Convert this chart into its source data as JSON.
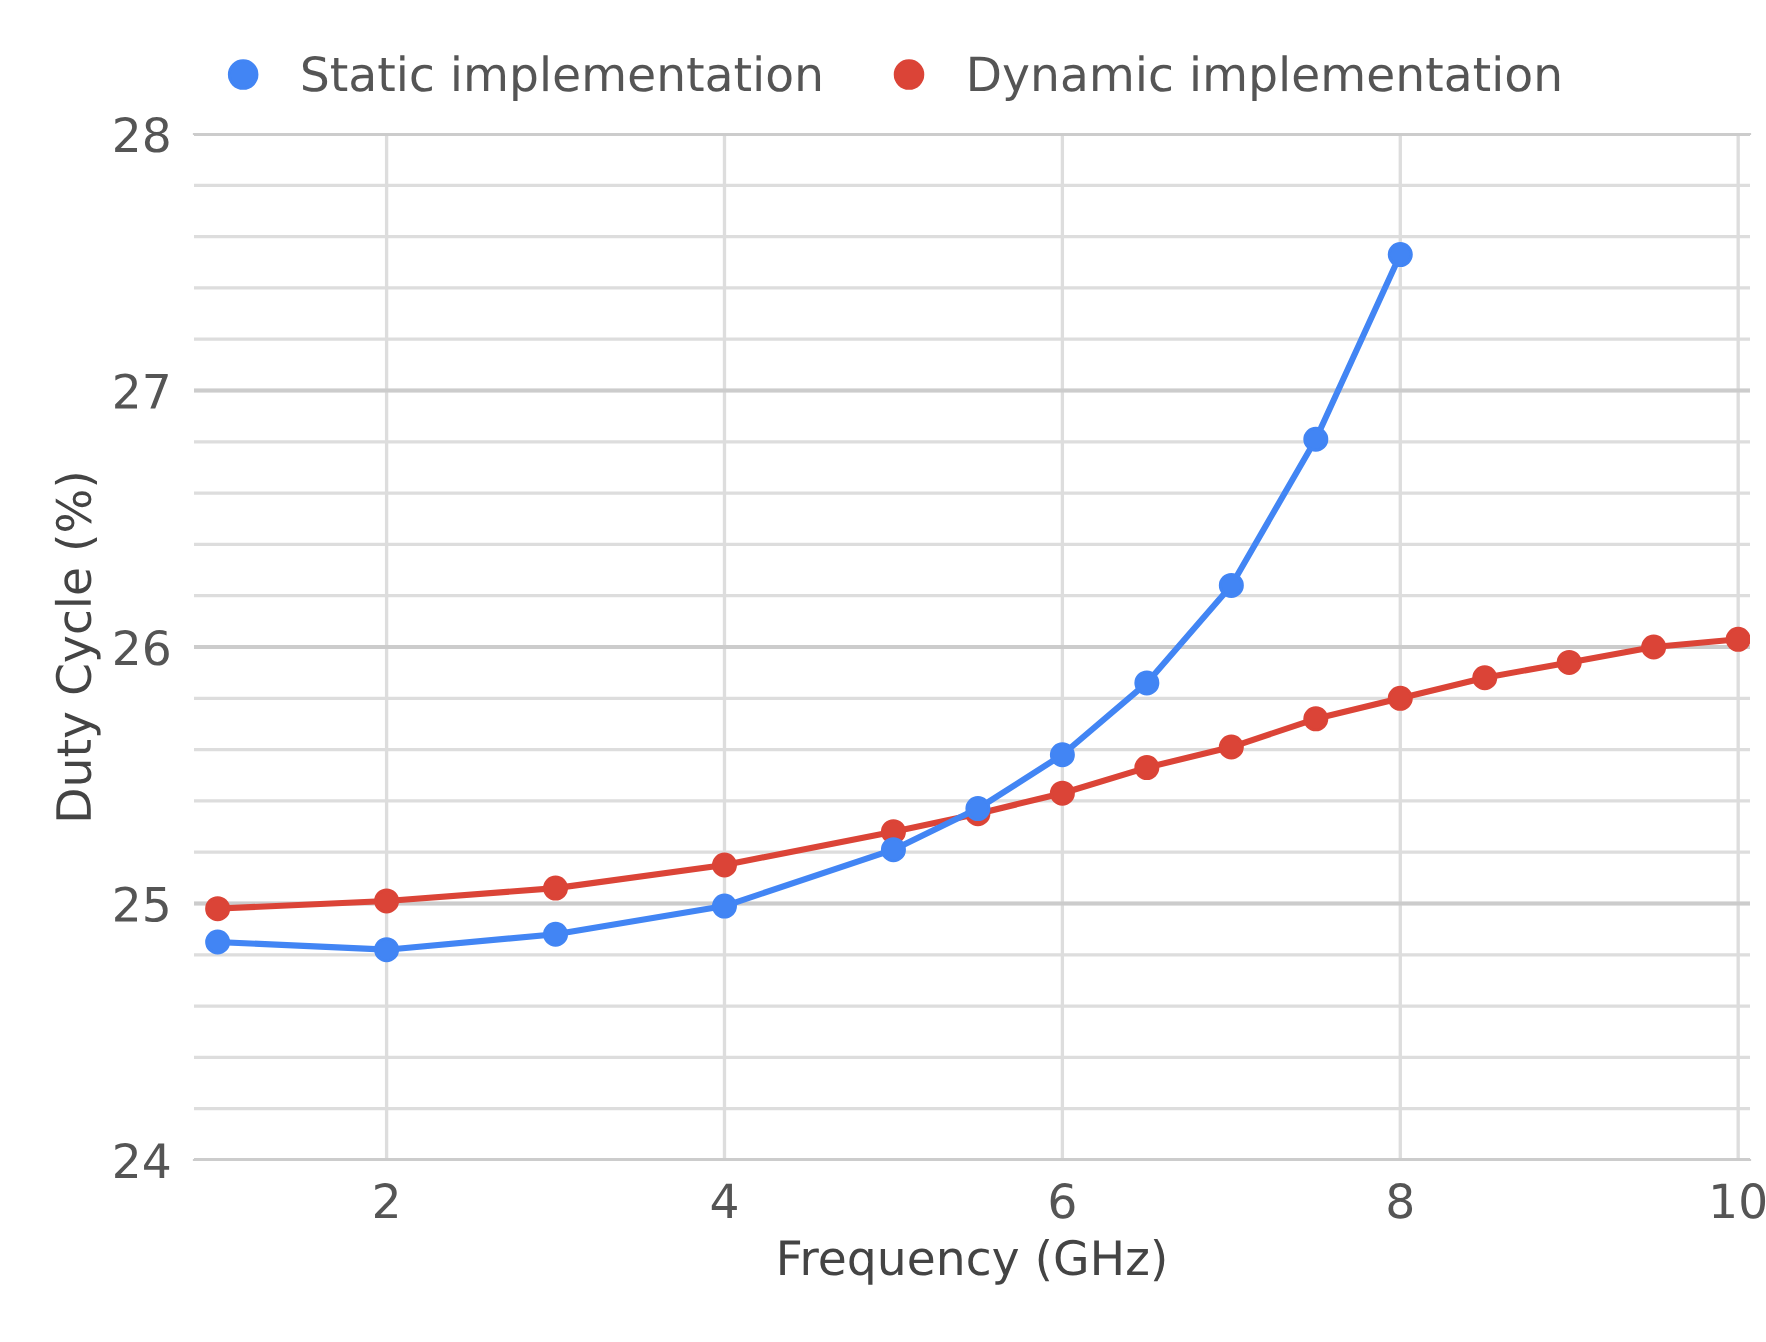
{
  "chart_data": {
    "type": "line",
    "xlabel": "Frequency (GHz)",
    "ylabel": "Duty Cycle (%)",
    "xlim": [
      0.86,
      10.07
    ],
    "xticks": [
      2,
      4,
      6,
      8,
      10
    ],
    "ylim": [
      24,
      28
    ],
    "yticks": [
      24,
      {
        "value": 24.2,
        "label": null
      },
      {
        "value": 24.4,
        "label": null
      },
      {
        "value": 24.6,
        "label": null
      },
      {
        "value": 24.8,
        "label": null
      },
      25,
      {
        "value": 25.2,
        "label": null
      },
      {
        "value": 25.4,
        "label": null
      },
      {
        "value": 25.6,
        "label": null
      },
      {
        "value": 25.8,
        "label": null
      },
      26,
      {
        "value": 26.2,
        "label": null
      },
      {
        "value": 26.4,
        "label": null
      },
      {
        "value": 26.6,
        "label": null
      },
      {
        "value": 26.8,
        "label": null
      },
      27,
      {
        "value": 27.2,
        "label": null
      },
      {
        "value": 27.4,
        "label": null
      },
      {
        "value": 27.6,
        "label": null
      },
      {
        "value": 27.8,
        "label": null
      },
      28
    ],
    "grid": true,
    "legend": "top left",
    "marker": "circle",
    "line_style": "solid",
    "series": [
      {
        "name": "Static implementation",
        "color": "#4285f4",
        "x": [
          1,
          2,
          3,
          4,
          5,
          5.5,
          6,
          6.5,
          7,
          7.5,
          8
        ],
        "values": [
          24.85,
          24.82,
          24.88,
          24.99,
          25.21,
          25.37,
          25.58,
          25.86,
          26.24,
          26.81,
          27.53
        ]
      },
      {
        "name": "Dynamic implementation",
        "color": "#db4437",
        "x": [
          1,
          2,
          3,
          4,
          5,
          5.5,
          6,
          6.5,
          7,
          7.5,
          8,
          8.5,
          9,
          9.5,
          10
        ],
        "values": [
          24.98,
          25.01,
          25.06,
          25.15,
          25.28,
          25.35,
          25.43,
          25.53,
          25.61,
          25.72,
          25.8,
          25.88,
          25.94,
          26.0,
          26.03
        ]
      }
    ]
  }
}
